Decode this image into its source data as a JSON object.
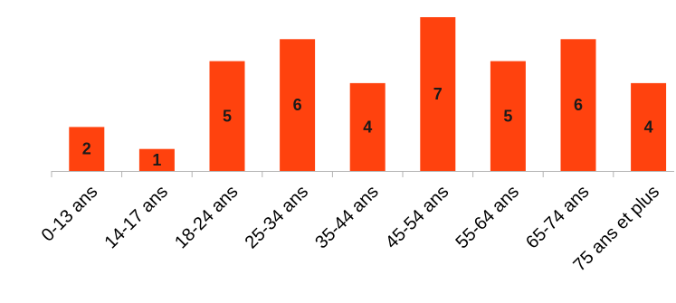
{
  "chart_data": {
    "type": "bar",
    "categories": [
      "0-13 ans",
      "14-17 ans",
      "18-24 ans",
      "25-34 ans",
      "35-44 ans",
      "45-54 ans",
      "55-64 ans",
      "65-74 ans",
      "75 ans et plus"
    ],
    "values": [
      2,
      1,
      5,
      6,
      4,
      7,
      5,
      6,
      4
    ],
    "data_labels": [
      "2",
      "1",
      "5",
      "6",
      "4",
      "7",
      "5",
      "6",
      "4"
    ],
    "title": "",
    "xlabel": "",
    "ylabel": "",
    "ylim": [
      0,
      7
    ],
    "grid": false,
    "legend": "none",
    "colors": {
      "bar": "#ff420e",
      "axis": "#b3b3b3",
      "label": "#1a1a1a"
    }
  }
}
